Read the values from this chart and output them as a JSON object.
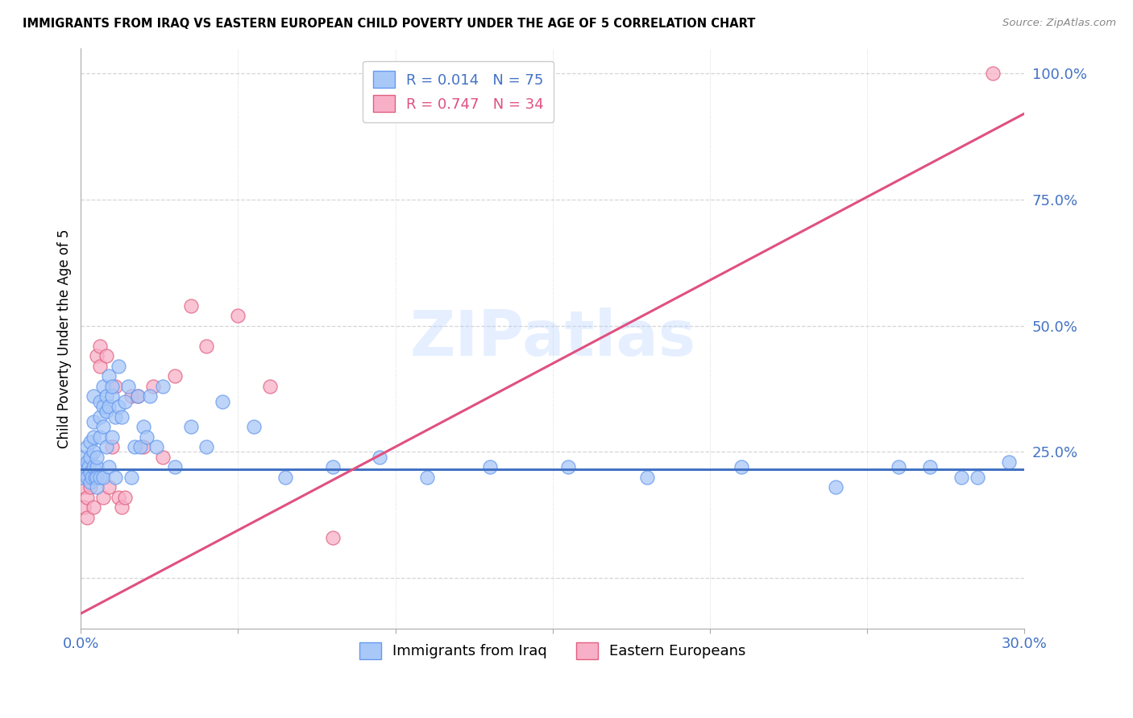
{
  "title": "IMMIGRANTS FROM IRAQ VS EASTERN EUROPEAN CHILD POVERTY UNDER THE AGE OF 5 CORRELATION CHART",
  "source": "Source: ZipAtlas.com",
  "ylabel": "Child Poverty Under the Age of 5",
  "x_min": 0.0,
  "x_max": 0.3,
  "y_min": -0.1,
  "y_max": 1.05,
  "x_ticks": [
    0.0,
    0.05,
    0.1,
    0.15,
    0.2,
    0.25,
    0.3
  ],
  "x_tick_labels": [
    "0.0%",
    "",
    "",
    "",
    "",
    "",
    "30.0%"
  ],
  "y_ticks_right": [
    0.0,
    0.25,
    0.5,
    0.75,
    1.0
  ],
  "y_tick_labels_right": [
    "",
    "25.0%",
    "50.0%",
    "75.0%",
    "100.0%"
  ],
  "color_iraq": "#a8c8f8",
  "color_iraq_edge": "#6699ee",
  "color_ee": "#f8b0c8",
  "color_ee_edge": "#e06080",
  "color_iraq_line": "#4472c4",
  "color_ee_line": "#e05080",
  "color_axis_label": "#4472c4",
  "color_grid": "#cccccc",
  "legend_iraq_R": "0.014",
  "legend_iraq_N": "75",
  "legend_ee_R": "0.747",
  "legend_ee_N": "34",
  "watermark_text": "ZIPatlas",
  "iraq_x": [
    0.0005,
    0.001,
    0.001,
    0.0015,
    0.002,
    0.002,
    0.002,
    0.0025,
    0.003,
    0.003,
    0.003,
    0.003,
    0.0035,
    0.004,
    0.004,
    0.004,
    0.004,
    0.004,
    0.0045,
    0.005,
    0.005,
    0.005,
    0.005,
    0.006,
    0.006,
    0.006,
    0.006,
    0.007,
    0.007,
    0.007,
    0.007,
    0.008,
    0.008,
    0.008,
    0.009,
    0.009,
    0.009,
    0.01,
    0.01,
    0.01,
    0.011,
    0.011,
    0.012,
    0.012,
    0.013,
    0.014,
    0.015,
    0.016,
    0.017,
    0.018,
    0.019,
    0.02,
    0.021,
    0.022,
    0.024,
    0.026,
    0.03,
    0.035,
    0.04,
    0.045,
    0.055,
    0.065,
    0.08,
    0.095,
    0.11,
    0.13,
    0.155,
    0.18,
    0.21,
    0.24,
    0.26,
    0.27,
    0.28,
    0.285,
    0.295
  ],
  "iraq_y": [
    0.2,
    0.24,
    0.21,
    0.22,
    0.2,
    0.23,
    0.26,
    0.22,
    0.19,
    0.21,
    0.24,
    0.27,
    0.2,
    0.22,
    0.25,
    0.28,
    0.31,
    0.36,
    0.2,
    0.22,
    0.24,
    0.2,
    0.18,
    0.32,
    0.35,
    0.28,
    0.2,
    0.34,
    0.38,
    0.3,
    0.2,
    0.36,
    0.33,
    0.26,
    0.4,
    0.34,
    0.22,
    0.36,
    0.38,
    0.28,
    0.32,
    0.2,
    0.42,
    0.34,
    0.32,
    0.35,
    0.38,
    0.2,
    0.26,
    0.36,
    0.26,
    0.3,
    0.28,
    0.36,
    0.26,
    0.38,
    0.22,
    0.3,
    0.26,
    0.35,
    0.3,
    0.2,
    0.22,
    0.24,
    0.2,
    0.22,
    0.22,
    0.2,
    0.22,
    0.18,
    0.22,
    0.22,
    0.2,
    0.2,
    0.23
  ],
  "ee_x": [
    0.0005,
    0.001,
    0.001,
    0.0015,
    0.002,
    0.002,
    0.003,
    0.003,
    0.004,
    0.004,
    0.005,
    0.005,
    0.006,
    0.006,
    0.007,
    0.008,
    0.009,
    0.01,
    0.011,
    0.012,
    0.013,
    0.014,
    0.016,
    0.018,
    0.02,
    0.023,
    0.026,
    0.03,
    0.035,
    0.04,
    0.05,
    0.06,
    0.08,
    0.29
  ],
  "ee_y": [
    0.2,
    0.18,
    0.14,
    0.22,
    0.16,
    0.12,
    0.2,
    0.18,
    0.14,
    0.2,
    0.44,
    0.2,
    0.46,
    0.42,
    0.16,
    0.44,
    0.18,
    0.26,
    0.38,
    0.16,
    0.14,
    0.16,
    0.36,
    0.36,
    0.26,
    0.38,
    0.24,
    0.4,
    0.54,
    0.46,
    0.52,
    0.38,
    0.08,
    1.0
  ],
  "iraq_trend_x": [
    0.0,
    0.3
  ],
  "iraq_trend_y": [
    0.215,
    0.215
  ],
  "ee_trend_x": [
    0.0,
    0.3
  ],
  "ee_trend_y": [
    -0.07,
    0.92
  ]
}
